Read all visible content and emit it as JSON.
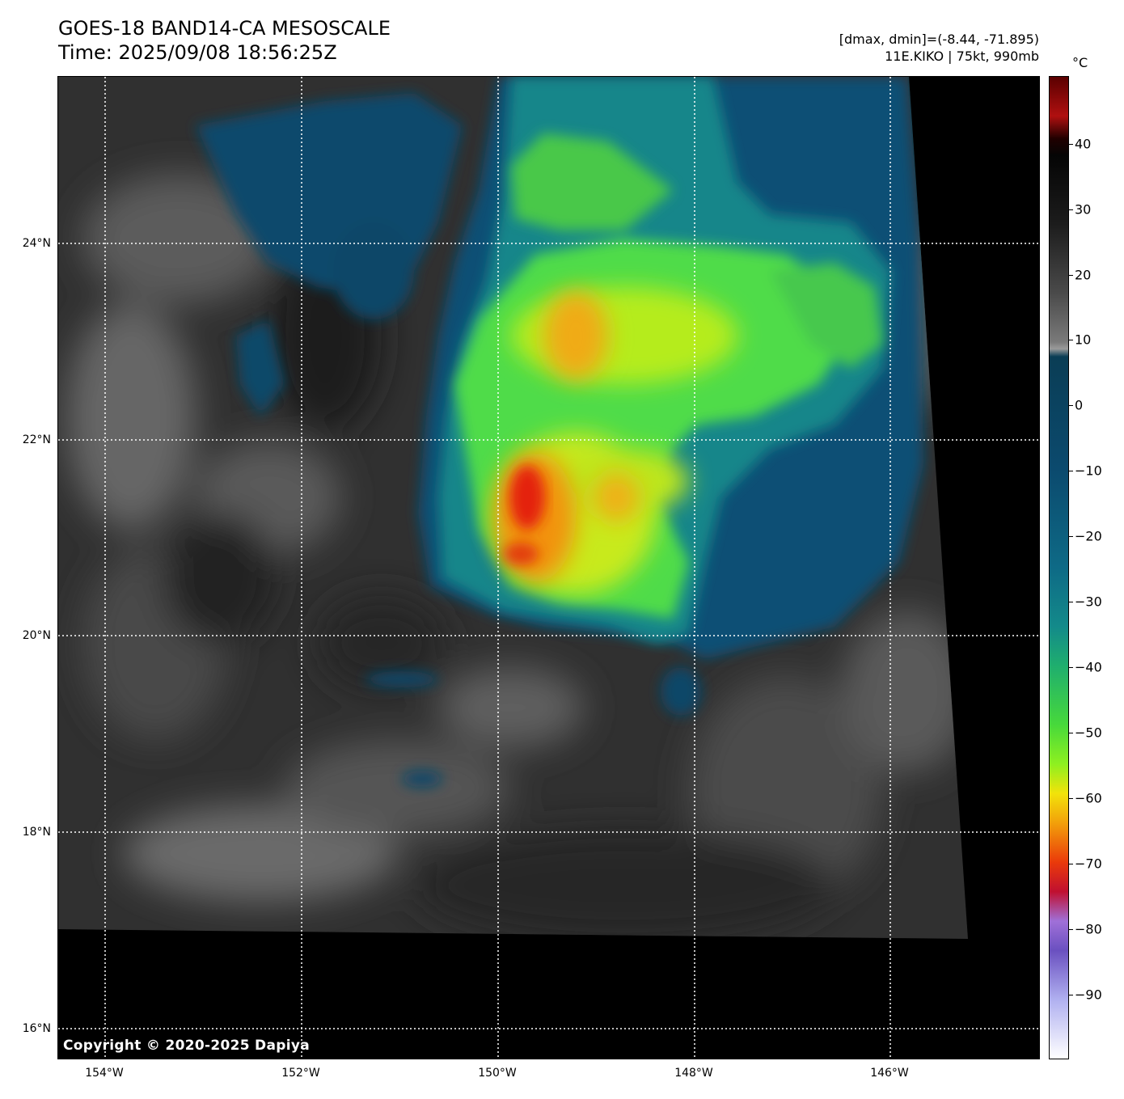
{
  "header": {
    "title_line1": "GOES-18 BAND14-CA MESOSCALE",
    "title_line2": "Time: 2025/09/08 18:56:25Z",
    "dmax_dmin": "[dmax, dmin]=(-8.44, -71.895)",
    "storm": "11E.KIKO | 75kt, 990mb"
  },
  "map": {
    "lat_labels": [
      "24°N",
      "22°N",
      "20°N",
      "18°N",
      "16°N"
    ],
    "lon_labels": [
      "154°W",
      "152°W",
      "150°W",
      "148°W",
      "146°W"
    ],
    "copyright": "Copyright © 2020-2025 Dapiya",
    "colors": {
      "no_data": "#000000",
      "warm_cloud_dark": "#262626",
      "warm_cloud_light": "#7a7a7a",
      "cool_blue": "#0a4a6e",
      "teal": "#138a8a",
      "green": "#4fe04f",
      "yellow": "#f2e10a",
      "orange": "#f2990a",
      "red": "#e0200a"
    }
  },
  "colorbar": {
    "unit": "°C",
    "ticks": [
      "40",
      "30",
      "20",
      "10",
      "0",
      "−10",
      "−20",
      "−30",
      "−40",
      "−50",
      "−60",
      "−70",
      "−80",
      "−90"
    ]
  }
}
